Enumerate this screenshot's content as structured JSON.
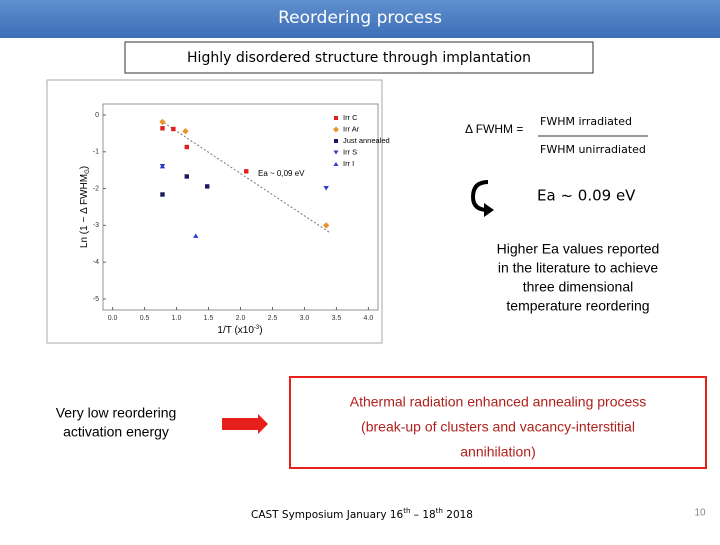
{
  "header": {
    "title": "Reordering process",
    "subtitle": "Highly disordered structure through implantation"
  },
  "formula": {
    "lhs": "Δ FWHM =",
    "numerator": "FWHM irradiated",
    "denominator": "FWHM unirradiated"
  },
  "result": "Ea ~ 0.09 eV",
  "note_lines": [
    "Higher Ea values reported",
    "in the literature to achieve",
    "three dimensional",
    "temperature reordering"
  ],
  "left_lines": [
    "Very low reordering",
    "activation energy"
  ],
  "box_lines": [
    "Athermal radiation enhanced annealing process",
    "(break-up of clusters and vacancy-interstitial",
    "annihilation)"
  ],
  "footer": {
    "parts": [
      "CAST Symposium January 16",
      "th",
      " – 18",
      "th",
      " 2018"
    ],
    "page": "10"
  },
  "chart_data": {
    "type": "scatter",
    "x_label": "1/T (x10",
    "x_label_sup": "-3",
    "x_label_end": ")",
    "y_label": "Ln (1 − Δ FWHM",
    "y_label_sub": "G",
    "y_label_end": ")",
    "annotation": "Ea ~ 0,09 eV",
    "xlim": [
      -0.15,
      4.15
    ],
    "ylim": [
      -5.3,
      0.3
    ],
    "xticks": [
      {
        "value": 0,
        "label": "0.0"
      },
      {
        "value": 0.5,
        "label": "0.5"
      },
      {
        "value": 1,
        "label": "1.0"
      },
      {
        "value": 1.5,
        "label": "1.5"
      },
      {
        "value": 2,
        "label": "2.0"
      },
      {
        "value": 2.5,
        "label": "2.5"
      },
      {
        "value": 3,
        "label": "3.0"
      },
      {
        "value": 3.5,
        "label": "3.5"
      },
      {
        "value": 4,
        "label": "4.0"
      }
    ],
    "yticks": [
      0,
      -1,
      -2,
      -3,
      -4,
      -5
    ],
    "fit": {
      "x": [
        0.75,
        3.4
      ],
      "y": [
        -0.15,
        -3.2
      ],
      "color": "#777777"
    },
    "series": [
      {
        "name": "Irr C",
        "color": "#e0201b",
        "marker": "square",
        "x": [
          0.78,
          0.95,
          1.16,
          2.09
        ],
        "values": [
          -0.36,
          -0.38,
          -0.87,
          -1.53
        ]
      },
      {
        "name": "Irr Ar",
        "color": "#e8962a",
        "marker": "diamond",
        "x": [
          0.78,
          1.14,
          3.34
        ],
        "values": [
          -0.19,
          -0.44,
          -3.0
        ]
      },
      {
        "name": "Just annealed",
        "color": "#1a1a5e",
        "marker": "square",
        "x": [
          0.78,
          1.16,
          1.48
        ],
        "values": [
          -2.16,
          -1.67,
          -1.94
        ]
      },
      {
        "name": "Irr S",
        "color": "#2a3cc8",
        "marker": "triangle-down",
        "x": [
          0.78,
          3.34
        ],
        "values": [
          -1.39,
          -1.99
        ]
      },
      {
        "name": "Irr I",
        "color": "#2a3cc8",
        "marker": "triangle-up",
        "x": [
          0.78,
          1.3
        ],
        "values": [
          -1.39,
          -3.28
        ]
      }
    ]
  }
}
